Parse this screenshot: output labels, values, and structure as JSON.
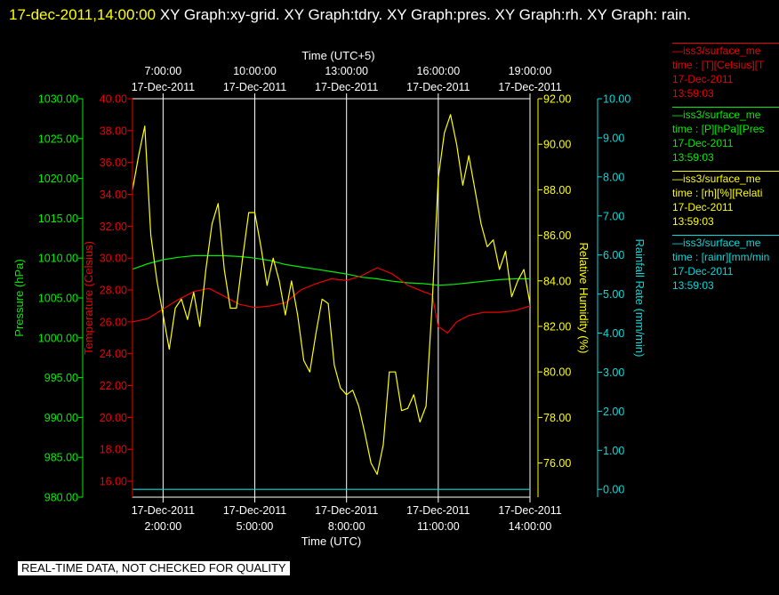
{
  "header": {
    "timestamp": "17-dec-2011,14:00:00",
    "graphs": " XY Graph:xy-grid.  XY Graph:tdry.  XY Graph:pres.  XY Graph:rh.  XY Graph: rain."
  },
  "banner": "REAL-TIME DATA, NOT CHECKED FOR QUALITY",
  "colors": {
    "pressure": "#00ee00",
    "temperature": "#ee0000",
    "humidity": "#ffff00",
    "rain": "#00dddd",
    "grid": "#ffffff"
  },
  "legend": [
    {
      "line1": "—iss3/surface_me",
      "line2": "time : [T][Celsius][T",
      "line3": "17-Dec-2011",
      "line4": "13:59:03",
      "color": "#ee0000"
    },
    {
      "line1": "—iss3/surface_me",
      "line2": "time : [P][hPa][Pres",
      "line3": "17-Dec-2011",
      "line4": "13:59:03",
      "color": "#00ee00"
    },
    {
      "line1": "—iss3/surface_me",
      "line2": "time : [rh][%][Relati",
      "line3": "17-Dec-2011",
      "line4": "13:59:03",
      "color": "#ffff00"
    },
    {
      "line1": "—iss3/surface_me",
      "line2": "time : [rainr][mm/min",
      "line3": "17-Dec-2011",
      "line4": "13:59:03",
      "color": "#00dddd"
    }
  ],
  "chart_data": {
    "type": "line",
    "x_unit": "hours UTC on 17-Dec-2011",
    "xlim": [
      1.0,
      14.0
    ],
    "top_axis": {
      "title": "Time (UTC+5)",
      "ticks": [
        {
          "x": 2,
          "time": "7:00:00",
          "date": "17-Dec-2011"
        },
        {
          "x": 5,
          "time": "10:00:00",
          "date": "17-Dec-2011"
        },
        {
          "x": 8,
          "time": "13:00:00",
          "date": "17-Dec-2011"
        },
        {
          "x": 11,
          "time": "16:00:00",
          "date": "17-Dec-2011"
        },
        {
          "x": 14,
          "time": "19:00:00",
          "date": "17-Dec-2011"
        }
      ]
    },
    "bottom_axis": {
      "title": "Time (UTC)",
      "ticks": [
        {
          "x": 2,
          "date": "17-Dec-2011",
          "time": "2:00:00"
        },
        {
          "x": 5,
          "date": "17-Dec-2011",
          "time": "5:00:00"
        },
        {
          "x": 8,
          "date": "17-Dec-2011",
          "time": "8:00:00"
        },
        {
          "x": 11,
          "date": "17-Dec-2011",
          "time": "11:00:00"
        },
        {
          "x": 14,
          "date": "17-Dec-2011",
          "time": "14:00:00"
        }
      ]
    },
    "axes": {
      "pressure": {
        "label": "Pressure (hPa)",
        "range": [
          980,
          1030
        ],
        "ticks": [
          "980.00",
          "985.00",
          "990.00",
          "995.00",
          "1000.00",
          "1005.00",
          "1010.00",
          "1015.00",
          "1020.00",
          "1025.00",
          "1030.00"
        ]
      },
      "temperature": {
        "label": "Temperature (Celsius)",
        "range": [
          15,
          40
        ],
        "ticks": [
          "16.00",
          "18.00",
          "20.00",
          "22.00",
          "24.00",
          "26.00",
          "28.00",
          "30.00",
          "32.00",
          "34.00",
          "36.00",
          "38.00",
          "40.00"
        ]
      },
      "humidity": {
        "label": "Relative Humidity (%)",
        "range": [
          74.5,
          92
        ],
        "ticks": [
          "76.00",
          "78.00",
          "80.00",
          "82.00",
          "84.00",
          "86.00",
          "88.00",
          "90.00",
          "92.00"
        ]
      },
      "rain": {
        "label": "Rainfall Rate (mm/min)",
        "range": [
          -0.2,
          10
        ],
        "ticks": [
          "0.00",
          "1.00",
          "2.00",
          "3.00",
          "4.00",
          "5.00",
          "6.00",
          "7.00",
          "8.00",
          "9.00",
          "10.00"
        ]
      }
    },
    "grid": true,
    "series": [
      {
        "name": "pressure",
        "axis": "pressure",
        "x": [
          1.0,
          1.5,
          2.0,
          2.5,
          3.0,
          3.5,
          4.0,
          4.5,
          5.0,
          5.5,
          6.0,
          6.5,
          7.0,
          7.5,
          8.0,
          8.5,
          9.0,
          9.5,
          10.0,
          10.5,
          11.0,
          11.5,
          12.0,
          12.5,
          13.0,
          13.5,
          14.0
        ],
        "y": [
          1008.6,
          1009.3,
          1009.8,
          1010.1,
          1010.3,
          1010.3,
          1010.3,
          1010.2,
          1010.0,
          1009.7,
          1009.2,
          1008.9,
          1008.6,
          1008.3,
          1008.0,
          1007.6,
          1007.4,
          1007.1,
          1006.9,
          1006.8,
          1006.6,
          1006.7,
          1006.9,
          1007.1,
          1007.3,
          1007.4,
          1007.4
        ]
      },
      {
        "name": "temperature",
        "axis": "temperature",
        "x": [
          1.0,
          1.5,
          2.0,
          2.5,
          3.0,
          3.5,
          4.0,
          4.5,
          5.0,
          5.5,
          6.0,
          6.5,
          7.0,
          7.5,
          8.0,
          8.5,
          9.0,
          9.5,
          10.0,
          10.5,
          10.8,
          11.0,
          11.3,
          11.6,
          12.0,
          12.5,
          13.0,
          13.5,
          14.0
        ],
        "y": [
          26.0,
          26.2,
          26.8,
          27.4,
          27.9,
          28.1,
          27.6,
          27.1,
          26.9,
          27.0,
          27.2,
          28.0,
          28.4,
          28.7,
          28.6,
          28.9,
          29.4,
          29.0,
          28.3,
          27.9,
          27.7,
          25.7,
          25.3,
          26.0,
          26.4,
          26.6,
          26.6,
          26.7,
          27.0
        ]
      },
      {
        "name": "humidity",
        "axis": "humidity",
        "x": [
          1.0,
          1.2,
          1.4,
          1.6,
          1.8,
          2.0,
          2.2,
          2.4,
          2.6,
          2.8,
          3.0,
          3.2,
          3.4,
          3.6,
          3.8,
          4.0,
          4.2,
          4.4,
          4.6,
          4.8,
          5.0,
          5.2,
          5.4,
          5.6,
          5.8,
          6.0,
          6.2,
          6.4,
          6.6,
          6.8,
          7.0,
          7.2,
          7.4,
          7.6,
          7.8,
          8.0,
          8.2,
          8.4,
          8.6,
          8.8,
          9.0,
          9.2,
          9.4,
          9.6,
          9.8,
          10.0,
          10.2,
          10.4,
          10.6,
          10.8,
          11.0,
          11.2,
          11.4,
          11.6,
          11.8,
          12.0,
          12.2,
          12.4,
          12.6,
          12.8,
          13.0,
          13.2,
          13.4,
          13.6,
          13.8,
          14.0
        ],
        "y": [
          88.0,
          89.5,
          90.8,
          86.0,
          84.0,
          82.5,
          81.0,
          82.8,
          83.2,
          82.3,
          83.5,
          82.0,
          84.5,
          86.5,
          87.4,
          84.5,
          82.8,
          82.8,
          85.0,
          87.0,
          87.0,
          85.5,
          83.8,
          85.0,
          84.0,
          82.5,
          84.0,
          82.5,
          80.5,
          80.0,
          81.7,
          83.2,
          83.0,
          80.3,
          79.3,
          79.0,
          79.2,
          78.5,
          77.3,
          76.0,
          75.5,
          76.8,
          80.0,
          80.0,
          78.3,
          78.4,
          79.0,
          77.8,
          78.5,
          83.0,
          88.5,
          90.5,
          91.3,
          90.0,
          88.2,
          89.5,
          88.0,
          86.5,
          85.5,
          85.8,
          84.5,
          85.3,
          83.3,
          84.0,
          84.5,
          83.0
        ]
      },
      {
        "name": "rain",
        "axis": "rain",
        "x": [
          1.0,
          14.0
        ],
        "y": [
          0.0,
          0.0
        ]
      }
    ]
  }
}
